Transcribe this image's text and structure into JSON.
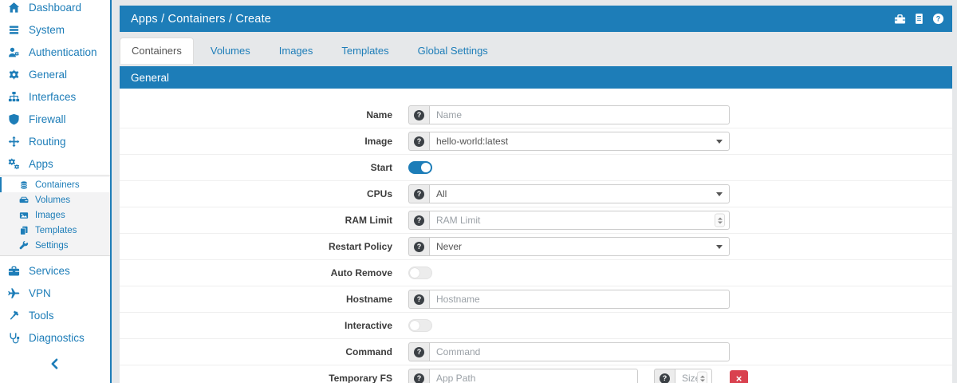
{
  "colors": {
    "accent": "#1d7db8",
    "danger": "#d9414f"
  },
  "header": {
    "title": "Apps / Containers / Create",
    "icons": [
      "toolbox-icon",
      "report-icon",
      "help-icon"
    ]
  },
  "sidebar": {
    "top_items": [
      {
        "label": "Dashboard",
        "icon": "home-icon"
      },
      {
        "label": "System",
        "icon": "server-bars-icon"
      },
      {
        "label": "Authentication",
        "icon": "user-gear-icon"
      },
      {
        "label": "General",
        "icon": "gear-icon"
      },
      {
        "label": "Interfaces",
        "icon": "sitemap-icon"
      },
      {
        "label": "Firewall",
        "icon": "shield-icon"
      },
      {
        "label": "Routing",
        "icon": "arrows-icon"
      },
      {
        "label": "Apps",
        "icon": "gears-icon"
      }
    ],
    "apps_submenu": [
      {
        "label": "Containers",
        "icon": "database-icon",
        "active": true
      },
      {
        "label": "Volumes",
        "icon": "hdd-icon",
        "active": false
      },
      {
        "label": "Images",
        "icon": "images-icon",
        "active": false
      },
      {
        "label": "Templates",
        "icon": "copy-icon",
        "active": false
      },
      {
        "label": "Settings",
        "icon": "wrench-icon",
        "active": false
      }
    ],
    "bottom_items": [
      {
        "label": "Services",
        "icon": "briefcase-icon"
      },
      {
        "label": "VPN",
        "icon": "plane-icon"
      },
      {
        "label": "Tools",
        "icon": "gavel-icon"
      },
      {
        "label": "Diagnostics",
        "icon": "stethoscope-icon"
      }
    ],
    "collapse_icon": "chevron-left-icon"
  },
  "tabs": [
    {
      "label": "Containers",
      "active": true
    },
    {
      "label": "Volumes",
      "active": false
    },
    {
      "label": "Images",
      "active": false
    },
    {
      "label": "Templates",
      "active": false
    },
    {
      "label": "Global Settings",
      "active": false
    }
  ],
  "section": {
    "title": "General"
  },
  "form": {
    "rows": [
      {
        "key": "name",
        "label": "Name",
        "type": "text",
        "help": true,
        "placeholder": "Name"
      },
      {
        "key": "image",
        "label": "Image",
        "type": "select",
        "help": true,
        "value": "hello-world:latest"
      },
      {
        "key": "start",
        "label": "Start",
        "type": "toggle",
        "on": true
      },
      {
        "key": "cpus",
        "label": "CPUs",
        "type": "select",
        "help": true,
        "value": "All"
      },
      {
        "key": "ram-limit",
        "label": "RAM Limit",
        "type": "number",
        "help": true,
        "placeholder": "RAM Limit"
      },
      {
        "key": "restart-policy",
        "label": "Restart Policy",
        "type": "select",
        "help": true,
        "value": "Never"
      },
      {
        "key": "auto-remove",
        "label": "Auto Remove",
        "type": "toggle",
        "on": false
      },
      {
        "key": "hostname",
        "label": "Hostname",
        "type": "text",
        "help": true,
        "placeholder": "Hostname"
      },
      {
        "key": "interactive",
        "label": "Interactive",
        "type": "toggle",
        "on": false
      },
      {
        "key": "command",
        "label": "Command",
        "type": "text",
        "help": true,
        "placeholder": "Command"
      },
      {
        "key": "temporary-fs",
        "label": "Temporary FS",
        "type": "pair",
        "fields": [
          {
            "key": "app-path",
            "type": "text",
            "help": true,
            "placeholder": "App Path"
          },
          {
            "key": "size",
            "type": "number",
            "help": true,
            "placeholder": "Size"
          }
        ],
        "remove_label": "×"
      }
    ]
  }
}
